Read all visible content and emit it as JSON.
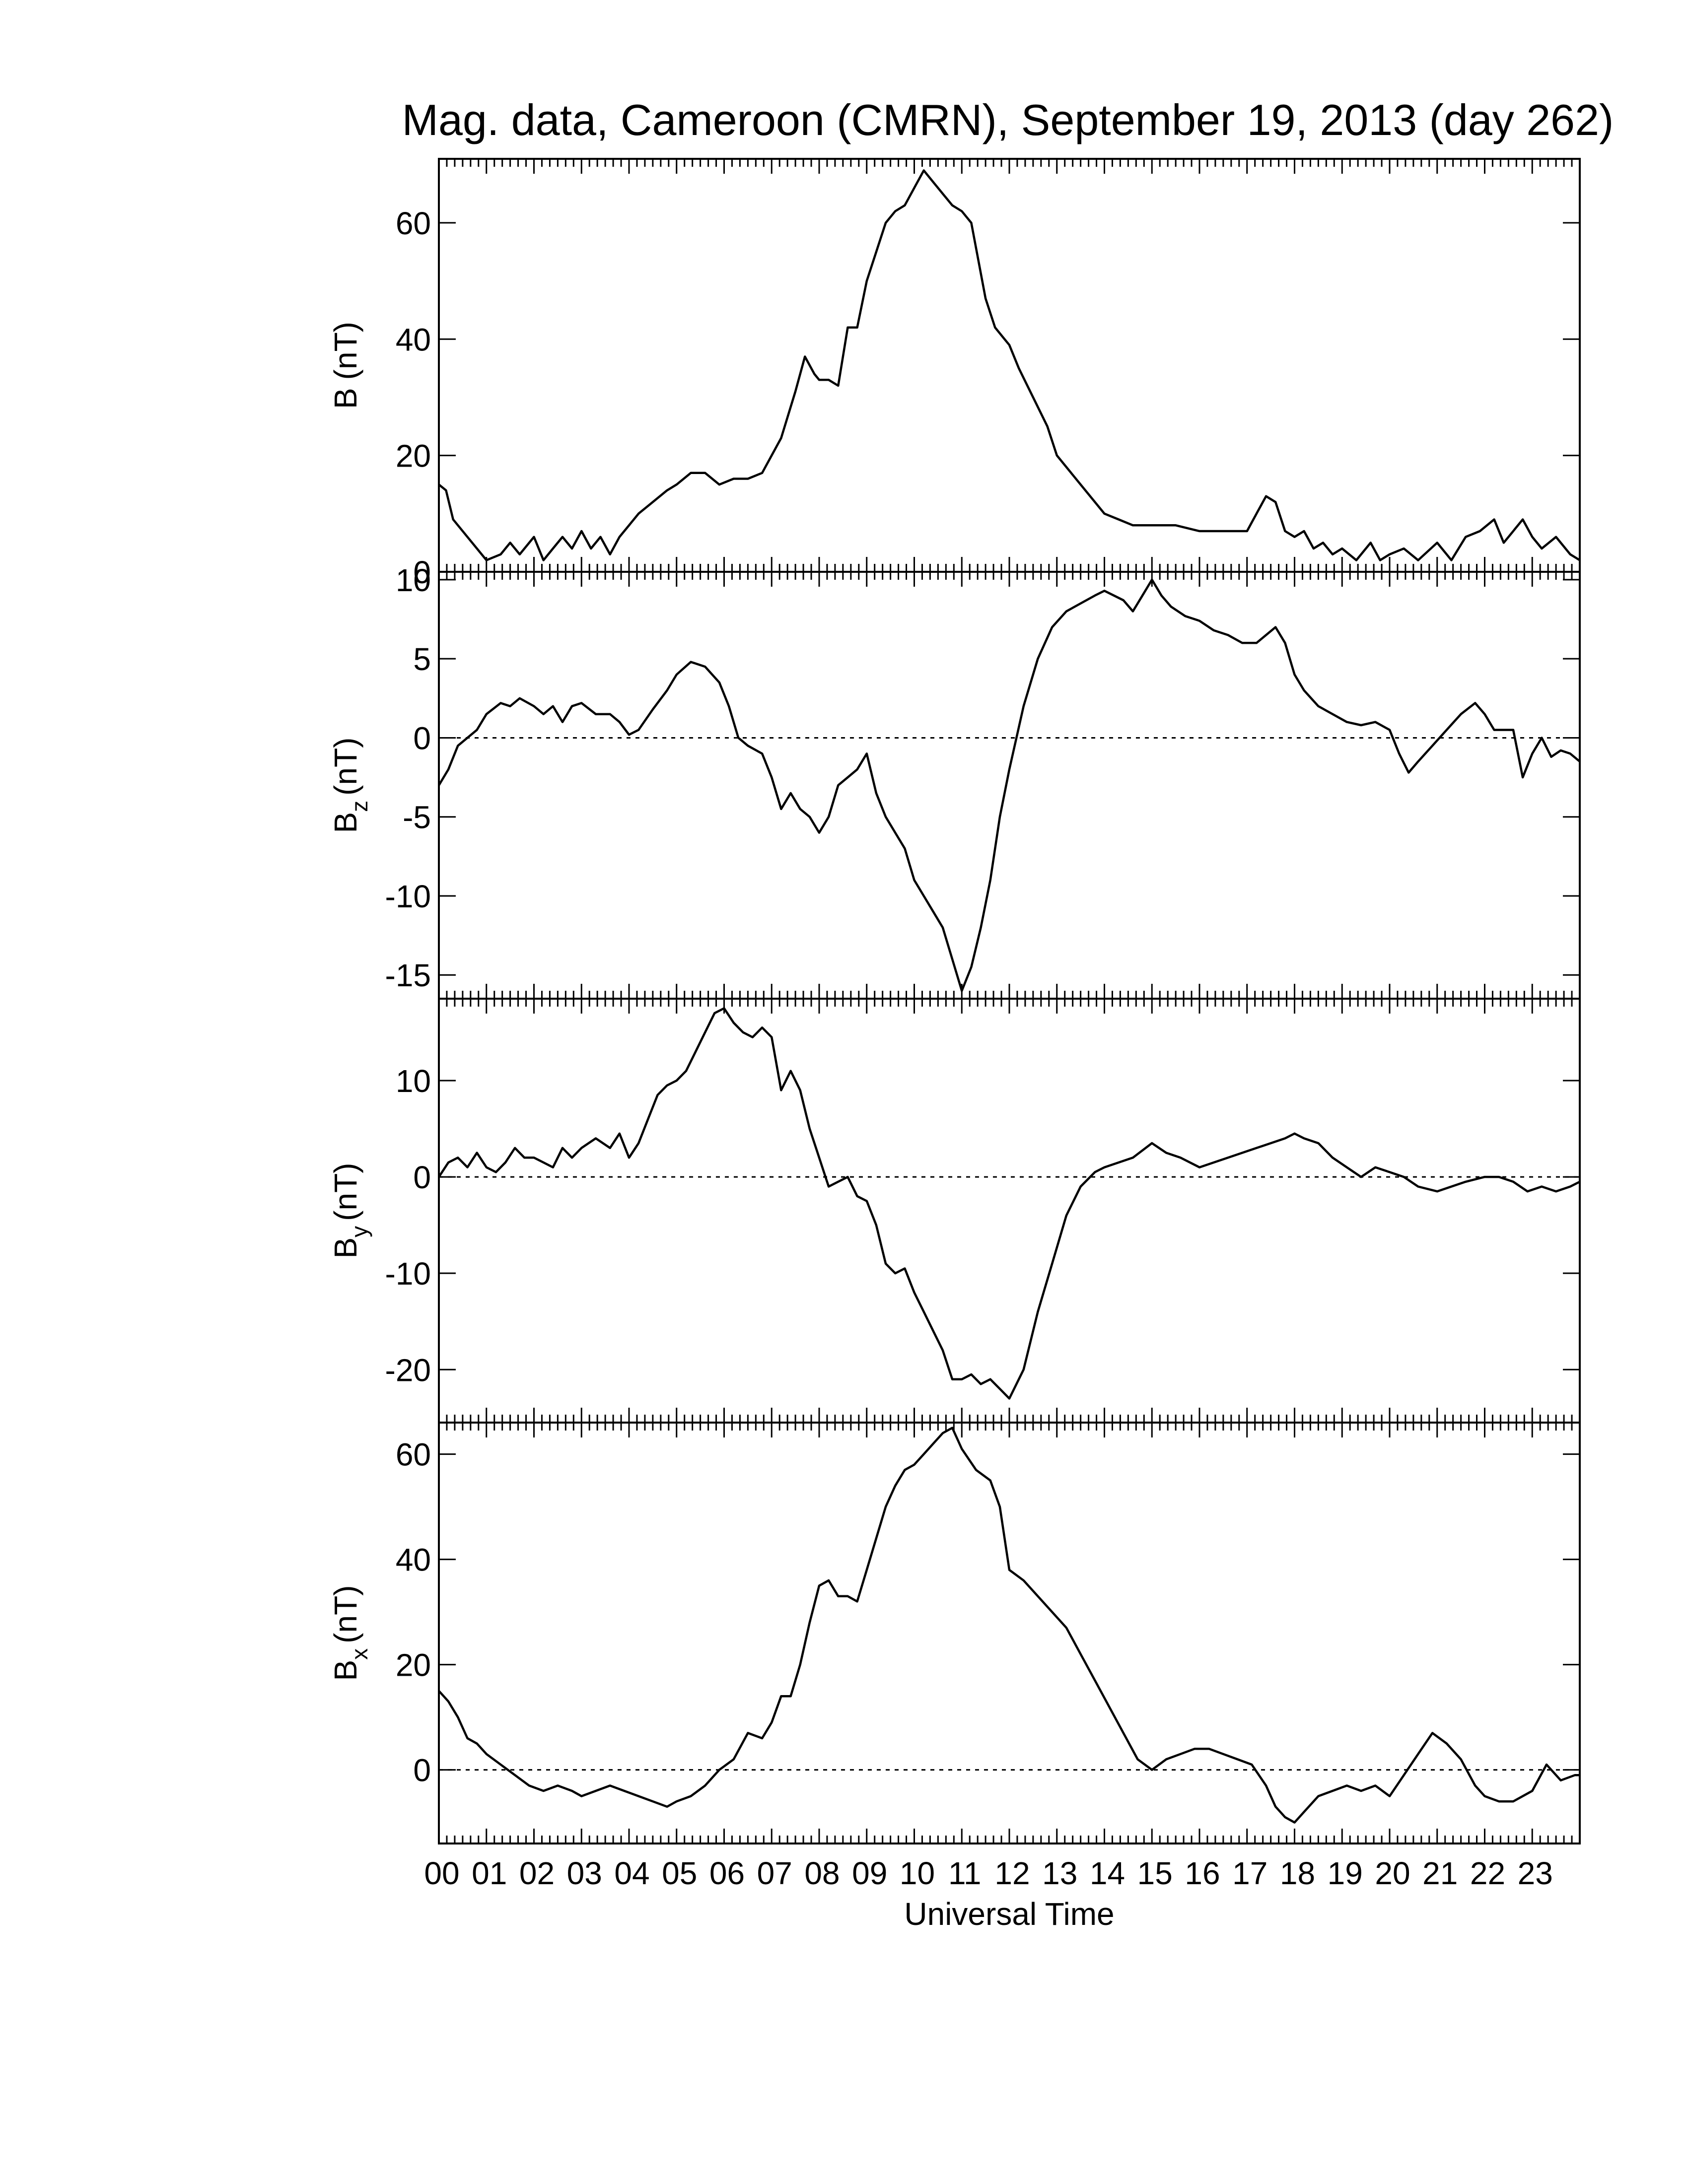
{
  "chart_data": [
    {
      "type": "line",
      "title": "Mag. data, Cameroon (CMRN), September 19, 2013 (day 262)",
      "ylabel": "B (nT)",
      "ylabel_main": "B",
      "ylabel_sub": "",
      "ylabel_unit": "(nT)",
      "ylim": [
        0,
        71
      ],
      "yticks": [
        0,
        20,
        40,
        60
      ],
      "zero_line": true,
      "xlim": [
        0,
        24
      ],
      "series": [
        {
          "x": [
            0,
            0.15,
            0.3,
            0.5,
            0.8,
            1.0,
            1.3,
            1.5,
            1.7,
            2.0,
            2.2,
            2.4,
            2.6,
            2.8,
            3.0,
            3.2,
            3.4,
            3.6,
            3.8,
            4.0,
            4.2,
            4.5,
            4.8,
            5.0,
            5.3,
            5.6,
            5.9,
            6.2,
            6.5,
            6.8,
            7.2,
            7.5,
            7.7,
            7.9,
            8.0,
            8.2,
            8.4,
            8.6,
            8.8,
            9.0,
            9.2,
            9.4,
            9.6,
            9.8,
            10.0,
            10.2,
            10.4,
            10.6,
            10.8,
            11.0,
            11.2,
            11.5,
            11.7,
            11.9,
            12.0,
            12.2,
            12.5,
            12.8,
            13.0,
            13.5,
            14.0,
            14.3,
            14.6,
            15.0,
            15.5,
            16.0,
            16.5,
            17.0,
            17.2,
            17.4,
            17.6,
            17.8,
            18.0,
            18.2,
            18.4,
            18.6,
            18.8,
            19.0,
            19.3,
            19.6,
            19.8,
            20.0,
            20.3,
            20.6,
            21.0,
            21.3,
            21.6,
            21.9,
            22.2,
            22.4,
            22.6,
            22.8,
            23.0,
            23.2,
            23.5,
            23.8,
            24.0
          ],
          "y": [
            15,
            14,
            9,
            7,
            4,
            2,
            3,
            5,
            3,
            6,
            2,
            4,
            6,
            4,
            7,
            4,
            6,
            3,
            6,
            8,
            10,
            12,
            14,
            15,
            17,
            17,
            15,
            16,
            16,
            17,
            23,
            31,
            37,
            34,
            33,
            33,
            32,
            42,
            42,
            50,
            55,
            60,
            62,
            63,
            66,
            69,
            67,
            65,
            63,
            62,
            60,
            47,
            42,
            40,
            39,
            35,
            30,
            25,
            20,
            15,
            10,
            9,
            8,
            8,
            8,
            7,
            7,
            7,
            10,
            13,
            12,
            7,
            6,
            7,
            4,
            5,
            3,
            4,
            2,
            5,
            2,
            3,
            4,
            2,
            5,
            2,
            6,
            7,
            9,
            5,
            7,
            9,
            6,
            4,
            6,
            3,
            2
          ]
        }
      ]
    },
    {
      "type": "line",
      "ylabel": "B_z (nT)",
      "ylabel_main": "B",
      "ylabel_sub": "z",
      "ylabel_unit": "(nT)",
      "ylim": [
        -16.5,
        10.5
      ],
      "yticks": [
        -15,
        -10,
        -5,
        0,
        5,
        10
      ],
      "zero_line": true,
      "xlim": [
        0,
        24
      ],
      "series": [
        {
          "x": [
            0,
            0.2,
            0.4,
            0.6,
            0.8,
            1.0,
            1.3,
            1.5,
            1.7,
            2.0,
            2.2,
            2.4,
            2.6,
            2.8,
            3.0,
            3.3,
            3.6,
            3.8,
            4.0,
            4.2,
            4.5,
            4.8,
            5.0,
            5.3,
            5.6,
            5.9,
            6.1,
            6.3,
            6.5,
            6.8,
            7.0,
            7.2,
            7.4,
            7.6,
            7.8,
            8.0,
            8.2,
            8.4,
            8.6,
            8.8,
            9.0,
            9.2,
            9.4,
            9.6,
            9.8,
            10.0,
            10.2,
            10.4,
            10.6,
            10.8,
            11.0,
            11.2,
            11.4,
            11.6,
            11.8,
            12.0,
            12.3,
            12.6,
            12.9,
            13.2,
            13.5,
            13.8,
            14.0,
            14.2,
            14.4,
            14.6,
            14.8,
            15.0,
            15.2,
            15.4,
            15.7,
            16.0,
            16.3,
            16.6,
            16.9,
            17.2,
            17.4,
            17.6,
            17.8,
            18.0,
            18.2,
            18.5,
            18.8,
            19.1,
            19.4,
            19.7,
            20.0,
            20.2,
            20.4,
            20.6,
            20.9,
            21.2,
            21.5,
            21.8,
            22.0,
            22.2,
            22.4,
            22.6,
            22.8,
            23.0,
            23.2,
            23.4,
            23.6,
            23.8,
            24.0
          ],
          "y": [
            -3,
            -2,
            -0.5,
            0,
            0.5,
            1.5,
            2.2,
            2,
            2.5,
            2,
            1.5,
            2,
            1,
            2,
            2.2,
            1.5,
            1.5,
            1,
            0.2,
            0.5,
            1.8,
            3,
            4,
            4.8,
            4.5,
            3.5,
            2,
            0,
            -0.5,
            -1,
            -2.5,
            -4.5,
            -3.5,
            -4.5,
            -5,
            -6,
            -5,
            -3,
            -2.5,
            -2,
            -1,
            -3.5,
            -5,
            -6,
            -7,
            -9,
            -10,
            -11,
            -12,
            -14,
            -16,
            -14.5,
            -12,
            -9,
            -5,
            -2,
            2,
            5,
            7,
            8,
            8.5,
            9,
            9.3,
            9,
            8.7,
            8,
            9,
            10,
            9,
            8.3,
            7.7,
            7.4,
            6.8,
            6.5,
            6,
            6,
            6.5,
            7,
            6,
            4,
            3,
            2,
            1.5,
            1,
            0.8,
            1,
            0.5,
            -1,
            -2.2,
            -1.5,
            -0.5,
            0.5,
            1.5,
            2.2,
            1.5,
            0.5,
            0.5,
            0.5,
            -2.5,
            -1,
            0,
            -1.2,
            -0.8,
            -1,
            -1.5
          ]
        }
      ]
    },
    {
      "type": "line",
      "ylabel": "B_y (nT)",
      "ylabel_main": "B",
      "ylabel_sub": "y",
      "ylabel_unit": "(nT)",
      "ylim": [
        -25.5,
        18.5
      ],
      "yticks": [
        -20,
        -10,
        0,
        10
      ],
      "zero_line": true,
      "xlim": [
        0,
        24
      ],
      "series": [
        {
          "x": [
            0,
            0.2,
            0.4,
            0.6,
            0.8,
            1.0,
            1.2,
            1.4,
            1.6,
            1.8,
            2.0,
            2.2,
            2.4,
            2.6,
            2.8,
            3.0,
            3.3,
            3.6,
            3.8,
            4.0,
            4.2,
            4.4,
            4.6,
            4.8,
            5.0,
            5.2,
            5.4,
            5.6,
            5.8,
            6.0,
            6.2,
            6.4,
            6.6,
            6.8,
            7.0,
            7.2,
            7.4,
            7.6,
            7.8,
            8.0,
            8.2,
            8.4,
            8.6,
            8.8,
            9.0,
            9.2,
            9.4,
            9.6,
            9.8,
            10.0,
            10.2,
            10.4,
            10.6,
            10.8,
            11.0,
            11.2,
            11.4,
            11.6,
            11.8,
            12.0,
            12.3,
            12.6,
            12.9,
            13.2,
            13.5,
            13.8,
            14.0,
            14.3,
            14.6,
            15.0,
            15.3,
            15.6,
            16.0,
            16.3,
            16.6,
            16.9,
            17.2,
            17.5,
            17.8,
            18.0,
            18.2,
            18.5,
            18.8,
            19.1,
            19.4,
            19.7,
            20.0,
            20.3,
            20.6,
            21.0,
            21.3,
            21.6,
            22.0,
            22.3,
            22.6,
            22.9,
            23.2,
            23.5,
            23.8,
            24.0
          ],
          "y": [
            0,
            1.5,
            2,
            1,
            2.5,
            1,
            0.5,
            1.5,
            3,
            2,
            2,
            1.5,
            1,
            3,
            2,
            3,
            4,
            3,
            4.5,
            2,
            3.5,
            6,
            8.5,
            9.5,
            10,
            11,
            13,
            15,
            17,
            17.5,
            16,
            15,
            14.5,
            15.5,
            14.5,
            9,
            11,
            9,
            5,
            2,
            -1,
            -0.5,
            0,
            -2,
            -2.5,
            -5,
            -9,
            -10,
            -9.5,
            -12,
            -14,
            -16,
            -18,
            -21,
            -21,
            -20.5,
            -21.5,
            -21,
            -22,
            -23,
            -20,
            -14,
            -9,
            -4,
            -1,
            0.5,
            1,
            1.5,
            2,
            3.5,
            2.5,
            2,
            1,
            1.5,
            2,
            2.5,
            3,
            3.5,
            4,
            4.5,
            4,
            3.5,
            2,
            1,
            0,
            1,
            0.5,
            0,
            -1,
            -1.5,
            -1,
            -0.5,
            0,
            0,
            -0.5,
            -1.5,
            -1,
            -1.5,
            -1,
            -0.5
          ]
        }
      ]
    },
    {
      "type": "line",
      "ylabel": "B_x (nT)",
      "ylabel_main": "B",
      "ylabel_sub": "x",
      "ylabel_unit": "(nT)",
      "ylim": [
        -14,
        66
      ],
      "yticks": [
        0,
        20,
        40,
        60
      ],
      "zero_line": true,
      "xlim": [
        0,
        24
      ],
      "xlabel": "Universal Time",
      "xticklabels": [
        "00",
        "01",
        "02",
        "03",
        "04",
        "05",
        "06",
        "07",
        "08",
        "09",
        "10",
        "11",
        "12",
        "13",
        "14",
        "15",
        "16",
        "17",
        "18",
        "19",
        "20",
        "21",
        "22",
        "23"
      ],
      "series": [
        {
          "x": [
            0,
            0.2,
            0.4,
            0.6,
            0.8,
            1.0,
            1.3,
            1.6,
            1.9,
            2.2,
            2.5,
            2.8,
            3.0,
            3.3,
            3.6,
            3.9,
            4.2,
            4.5,
            4.8,
            5.0,
            5.3,
            5.6,
            5.9,
            6.2,
            6.5,
            6.8,
            7.0,
            7.2,
            7.4,
            7.6,
            7.8,
            8.0,
            8.2,
            8.4,
            8.6,
            8.8,
            9.0,
            9.2,
            9.4,
            9.6,
            9.8,
            10.0,
            10.2,
            10.4,
            10.6,
            10.8,
            11.0,
            11.3,
            11.6,
            11.8,
            12.0,
            12.3,
            12.6,
            12.9,
            13.2,
            13.5,
            13.8,
            14.1,
            14.4,
            14.7,
            15.0,
            15.3,
            15.6,
            15.9,
            16.2,
            16.5,
            16.8,
            17.1,
            17.4,
            17.6,
            17.8,
            18.0,
            18.2,
            18.5,
            18.8,
            19.1,
            19.4,
            19.7,
            20.0,
            20.3,
            20.6,
            20.9,
            21.2,
            21.5,
            21.8,
            22.0,
            22.3,
            22.6,
            22.8,
            23.0,
            23.3,
            23.6,
            23.9,
            24.0
          ],
          "y": [
            15,
            13,
            10,
            6,
            5,
            3,
            1,
            -1,
            -3,
            -4,
            -3,
            -4,
            -5,
            -4,
            -3,
            -4,
            -5,
            -6,
            -7,
            -6,
            -5,
            -3,
            0,
            2,
            7,
            6,
            9,
            14,
            14,
            20,
            28,
            35,
            36,
            33,
            33,
            32,
            38,
            44,
            50,
            54,
            57,
            58,
            60,
            62,
            64,
            65,
            61,
            57,
            55,
            50,
            38,
            36,
            33,
            30,
            27,
            22,
            17,
            12,
            7,
            2,
            0,
            2,
            3,
            4,
            4,
            3,
            2,
            1,
            -3,
            -7,
            -9,
            -10,
            -8,
            -5,
            -4,
            -3,
            -4,
            -3,
            -5,
            -1,
            3,
            7,
            5,
            2,
            -3,
            -5,
            -6,
            -6,
            -5,
            -4,
            1,
            -2,
            -1,
            -1
          ]
        }
      ]
    }
  ]
}
